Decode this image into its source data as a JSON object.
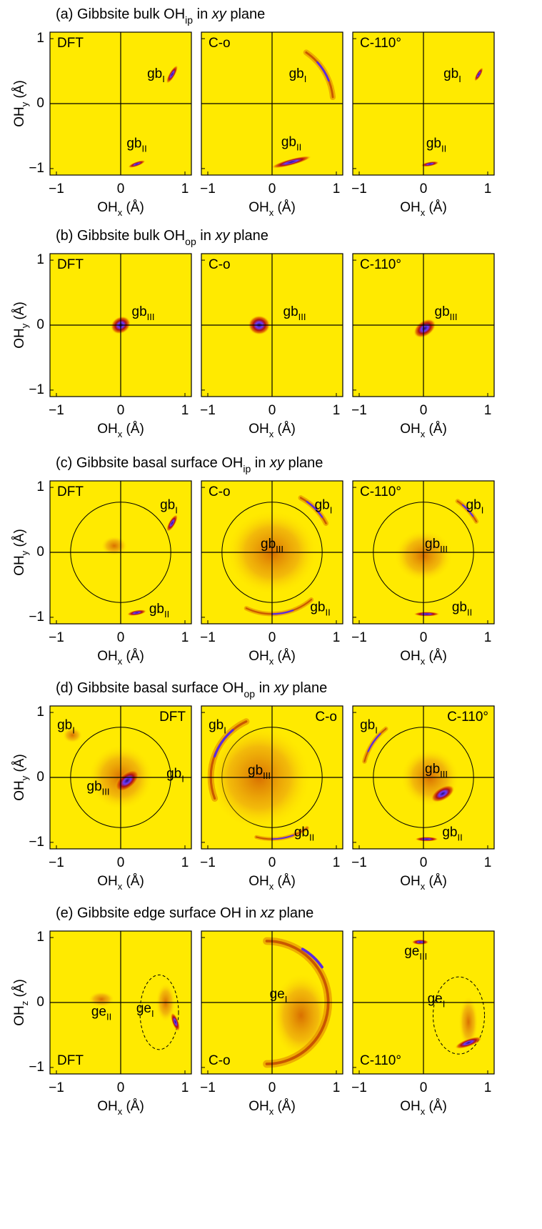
{
  "figure": {
    "xlim": [
      -1.1,
      1.1
    ],
    "ylim": [
      -1.1,
      1.1
    ],
    "xticks": [
      {
        "value": -1,
        "label": "−1"
      },
      0,
      1
    ],
    "yticks": [
      {
        "value": -1,
        "label": "−1"
      },
      0,
      1
    ],
    "x_label": [
      {
        "text": "OH"
      },
      {
        "text": "x",
        "style": "sub"
      },
      {
        "text": " (Å)"
      }
    ],
    "rows": [
      {
        "title": [
          {
            "text": "(a) Gibbsite bulk OH"
          },
          {
            "text": "ip",
            "style": "sub"
          },
          {
            "text": " in "
          },
          {
            "text": "xy",
            "style": "italic"
          },
          {
            "text": " plane"
          }
        ],
        "y_label": [
          {
            "text": "OH"
          },
          {
            "text": "y",
            "style": "sub"
          },
          {
            "text": " (Å)"
          }
        ],
        "label_corner": "top-left",
        "panels": [
          {
            "label": "DFT",
            "annotations": [
              [
                {
                  "text": "gb"
                },
                {
                  "text": "I",
                  "style": "sub"
                }
              ],
              [
                {
                  "text": "gb"
                },
                {
                  "text": "II",
                  "style": "sub"
                }
              ]
            ]
          },
          {
            "label": "C-o",
            "annotations": [
              [
                {
                  "text": "gb"
                },
                {
                  "text": "I",
                  "style": "sub"
                }
              ],
              [
                {
                  "text": "gb"
                },
                {
                  "text": "II",
                  "style": "sub"
                }
              ]
            ]
          },
          {
            "label": "C-110°",
            "annotations": [
              [
                {
                  "text": "gb"
                },
                {
                  "text": "I",
                  "style": "sub"
                }
              ],
              [
                {
                  "text": "gb"
                },
                {
                  "text": "II",
                  "style": "sub"
                }
              ]
            ]
          }
        ]
      },
      {
        "title": [
          {
            "text": "(b) Gibbsite bulk OH"
          },
          {
            "text": "op",
            "style": "sub"
          },
          {
            "text": " in "
          },
          {
            "text": "xy",
            "style": "italic"
          },
          {
            "text": " plane"
          }
        ],
        "y_label": [
          {
            "text": "OH"
          },
          {
            "text": "y",
            "style": "sub"
          },
          {
            "text": " (Å)"
          }
        ],
        "label_corner": "top-left",
        "panels": [
          {
            "label": "DFT",
            "annotations": [
              [
                {
                  "text": "gb"
                },
                {
                  "text": "III",
                  "style": "sub"
                }
              ]
            ]
          },
          {
            "label": "C-o",
            "annotations": [
              [
                {
                  "text": "gb"
                },
                {
                  "text": "III",
                  "style": "sub"
                }
              ]
            ]
          },
          {
            "label": "C-110°",
            "annotations": [
              [
                {
                  "text": "gb"
                },
                {
                  "text": "III",
                  "style": "sub"
                }
              ]
            ]
          }
        ]
      },
      {
        "title": [
          {
            "text": "(c) Gibbsite basal surface OH"
          },
          {
            "text": "ip",
            "style": "sub"
          },
          {
            "text": " in "
          },
          {
            "text": "xy",
            "style": "italic"
          },
          {
            "text": " plane"
          }
        ],
        "y_label": [
          {
            "text": "OH"
          },
          {
            "text": "y",
            "style": "sub"
          },
          {
            "text": " (Å)"
          }
        ],
        "label_corner": "top-left",
        "panels": [
          {
            "label": "DFT",
            "annotations": [
              [
                {
                  "text": "gb"
                },
                {
                  "text": "I",
                  "style": "sub"
                }
              ],
              [
                {
                  "text": "gb"
                },
                {
                  "text": "II",
                  "style": "sub"
                }
              ]
            ]
          },
          {
            "label": "C-o",
            "annotations": [
              [
                {
                  "text": "gb"
                },
                {
                  "text": "I",
                  "style": "sub"
                }
              ],
              [
                {
                  "text": "gb"
                },
                {
                  "text": "III",
                  "style": "sub"
                }
              ],
              [
                {
                  "text": "gb"
                },
                {
                  "text": "II",
                  "style": "sub"
                }
              ]
            ]
          },
          {
            "label": "C-110°",
            "annotations": [
              [
                {
                  "text": "gb"
                },
                {
                  "text": "I",
                  "style": "sub"
                }
              ],
              [
                {
                  "text": "gb"
                },
                {
                  "text": "III",
                  "style": "sub"
                }
              ],
              [
                {
                  "text": "gb"
                },
                {
                  "text": "II",
                  "style": "sub"
                }
              ]
            ]
          }
        ]
      },
      {
        "title": [
          {
            "text": "(d) Gibbsite basal surface OH"
          },
          {
            "text": "op",
            "style": "sub"
          },
          {
            "text": " in "
          },
          {
            "text": "xy",
            "style": "italic"
          },
          {
            "text": " plane"
          }
        ],
        "y_label": [
          {
            "text": "OH"
          },
          {
            "text": "y",
            "style": "sub"
          },
          {
            "text": " (Å)"
          }
        ],
        "label_corner": "top-right",
        "panels": [
          {
            "label": "DFT",
            "annotations": [
              [
                {
                  "text": "gb"
                },
                {
                  "text": "I",
                  "style": "sub"
                }
              ],
              [
                {
                  "text": "gb"
                },
                {
                  "text": "I",
                  "style": "sub"
                }
              ],
              [
                {
                  "text": "gb"
                },
                {
                  "text": "III",
                  "style": "sub"
                }
              ]
            ]
          },
          {
            "label": "C-o",
            "annotations": [
              [
                {
                  "text": "gb"
                },
                {
                  "text": "I",
                  "style": "sub"
                }
              ],
              [
                {
                  "text": "gb"
                },
                {
                  "text": "III",
                  "style": "sub"
                }
              ],
              [
                {
                  "text": "gb"
                },
                {
                  "text": "II",
                  "style": "sub"
                }
              ]
            ]
          },
          {
            "label": "C-110°",
            "annotations": [
              [
                {
                  "text": "gb"
                },
                {
                  "text": "I",
                  "style": "sub"
                }
              ],
              [
                {
                  "text": "gb"
                },
                {
                  "text": "III",
                  "style": "sub"
                }
              ],
              [
                {
                  "text": "gb"
                },
                {
                  "text": "II",
                  "style": "sub"
                }
              ]
            ]
          }
        ]
      },
      {
        "title": [
          {
            "text": "(e) Gibbsite edge surface OH in "
          },
          {
            "text": "xz",
            "style": "italic"
          },
          {
            "text": " plane"
          }
        ],
        "y_label": [
          {
            "text": "OH"
          },
          {
            "text": "z",
            "style": "sub"
          },
          {
            "text": " (Å)"
          }
        ],
        "label_corner": "bottom-left",
        "panels": [
          {
            "label": "DFT",
            "annotations": [
              [
                {
                  "text": "ge"
                },
                {
                  "text": "II",
                  "style": "sub"
                }
              ],
              [
                {
                  "text": "ge"
                },
                {
                  "text": "I",
                  "style": "sub"
                }
              ]
            ]
          },
          {
            "label": "C-o",
            "annotations": [
              [
                {
                  "text": "ge"
                },
                {
                  "text": "I",
                  "style": "sub"
                }
              ]
            ]
          },
          {
            "label": "C-110°",
            "annotations": [
              [
                {
                  "text": "ge"
                },
                {
                  "text": "III",
                  "style": "sub"
                }
              ],
              [
                {
                  "text": "ge"
                },
                {
                  "text": "I",
                  "style": "sub"
                }
              ]
            ]
          }
        ]
      }
    ]
  }
}
